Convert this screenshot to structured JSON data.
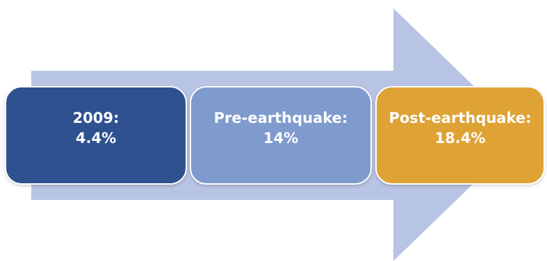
{
  "stages": [
    {
      "label": "2009:",
      "value": "4.4%"
    },
    {
      "label": "Pre-earthquake:",
      "value": "14%"
    },
    {
      "label": "Post-earthquake:",
      "value": "18.4%"
    }
  ],
  "colors": {
    "arrow": "#b8c4e3",
    "stage_1": "#2f5190",
    "stage_2": "#7f9acd",
    "stage_3": "#dea235",
    "text": "#ffffff"
  }
}
